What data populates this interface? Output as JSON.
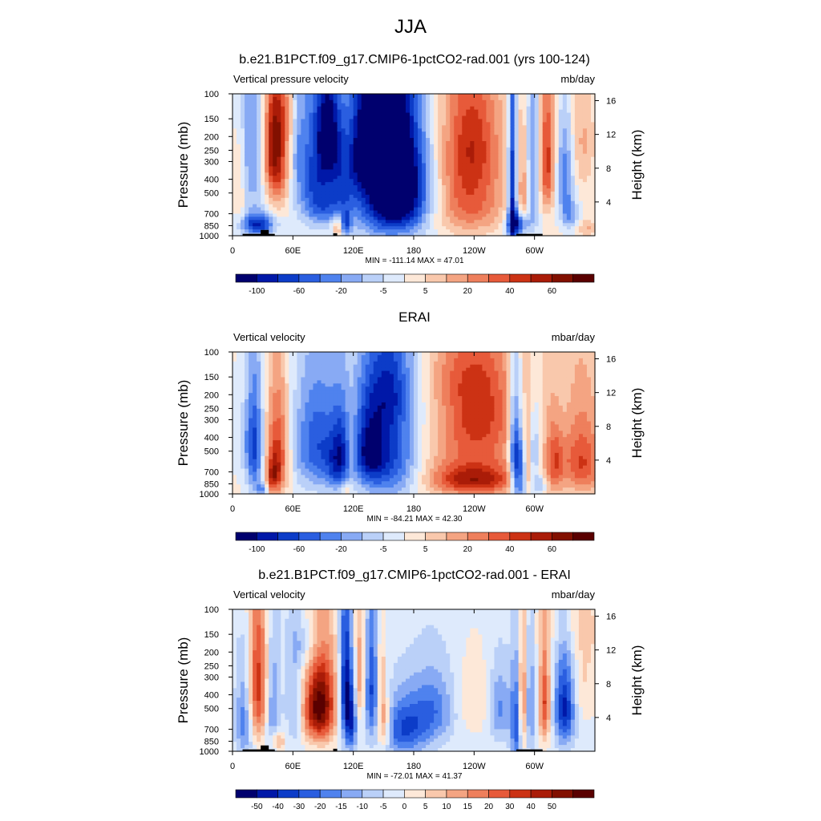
{
  "figure": {
    "title": "JJA"
  },
  "chart_data": [
    {
      "type": "heatmap",
      "title": "b.e21.B1PCT.f09_g17.CMIP6-1pctCO2-rad.001 (yrs 100-124)",
      "left_label": "Vertical pressure velocity",
      "units": "mb/day",
      "ylabel": "Pressure (mb)",
      "ylabel_right": "Height (km)",
      "y_ticks": [
        "100",
        "150",
        "200",
        "250",
        "300",
        "400",
        "500",
        "700",
        "850",
        "1000"
      ],
      "y_tick_values": [
        100,
        150,
        200,
        250,
        300,
        400,
        500,
        700,
        850,
        1000
      ],
      "y_right_ticks": [
        "16",
        "12",
        "8",
        "4"
      ],
      "y_right_values": [
        16,
        12,
        8,
        4
      ],
      "x_ticks": [
        "0",
        "60E",
        "120E",
        "180",
        "120W",
        "60W"
      ],
      "x_tick_values": [
        0,
        60,
        120,
        180,
        240,
        300
      ],
      "xlim": [
        0,
        360
      ],
      "ylim": [
        100,
        1000
      ],
      "stats": "MIN = -111.14  MAX =  47.01",
      "colorbar_labels": [
        "-100",
        "-60",
        "-20",
        "-5",
        "5",
        "20",
        "40",
        "60"
      ],
      "colors": [
        "#00006e",
        "#0018a8",
        "#0c3cc8",
        "#2a5ee0",
        "#4f82ee",
        "#88aaf4",
        "#bad0f8",
        "#deeafc",
        "#fde8d8",
        "#f9c8ac",
        "#f4a482",
        "#ee7f5c",
        "#e75a3a",
        "#cc3214",
        "#aa1c08",
        "#821000",
        "#5a0000"
      ],
      "field": {
        "background": 0.3,
        "blobs": [
          [
            22,
            230,
            10,
            300,
            -7
          ],
          [
            32,
            250,
            6,
            200,
            3
          ],
          [
            45,
            280,
            8,
            220,
            11
          ],
          [
            40,
            230,
            6,
            130,
            6
          ],
          [
            25,
            840,
            12,
            110,
            -12
          ],
          [
            55,
            140,
            10,
            60,
            3
          ],
          [
            65,
            140,
            4,
            200,
            -3
          ],
          [
            80,
            330,
            14,
            300,
            -9
          ],
          [
            95,
            190,
            8,
            120,
            -12
          ],
          [
            92,
            600,
            12,
            160,
            -6
          ],
          [
            105,
            860,
            4,
            100,
            7
          ],
          [
            112,
            820,
            4,
            110,
            -9
          ],
          [
            110,
            380,
            9,
            220,
            -6
          ],
          [
            150,
            420,
            24,
            360,
            -14
          ],
          [
            170,
            470,
            20,
            300,
            -12
          ],
          [
            130,
            240,
            8,
            140,
            -9
          ],
          [
            158,
            180,
            18,
            110,
            -6
          ],
          [
            178,
            180,
            10,
            80,
            2
          ],
          [
            235,
            380,
            24,
            330,
            10
          ],
          [
            240,
            200,
            16,
            120,
            3
          ],
          [
            238,
            720,
            30,
            140,
            1.5
          ],
          [
            278,
            500,
            3,
            500,
            -14
          ],
          [
            284,
            830,
            8,
            120,
            -12
          ],
          [
            290,
            500,
            4,
            300,
            7
          ],
          [
            298,
            360,
            6,
            300,
            -8
          ],
          [
            312,
            300,
            6,
            220,
            11
          ],
          [
            330,
            380,
            6,
            200,
            -8
          ],
          [
            335,
            720,
            6,
            120,
            -6
          ],
          [
            348,
            220,
            8,
            150,
            4
          ],
          [
            352,
            880,
            6,
            80,
            4
          ],
          [
            7,
            500,
            4,
            260,
            3
          ]
        ]
      },
      "topo": [
        [
          10,
          42,
          970
        ],
        [
          28,
          36,
          910
        ],
        [
          100,
          104,
          960
        ],
        [
          282,
          308,
          970
        ]
      ]
    },
    {
      "type": "heatmap",
      "title": "ERAI",
      "left_label": "Vertical velocity",
      "units": "mbar/day",
      "ylabel": "Pressure (mb)",
      "ylabel_right": "Height (km)",
      "y_ticks": [
        "100",
        "150",
        "200",
        "250",
        "300",
        "400",
        "500",
        "700",
        "850",
        "1000"
      ],
      "y_tick_values": [
        100,
        150,
        200,
        250,
        300,
        400,
        500,
        700,
        850,
        1000
      ],
      "y_right_ticks": [
        "16",
        "12",
        "8",
        "4"
      ],
      "y_right_values": [
        16,
        12,
        8,
        4
      ],
      "x_ticks": [
        "0",
        "60E",
        "120E",
        "180",
        "120W",
        "60W"
      ],
      "x_tick_values": [
        0,
        60,
        120,
        180,
        240,
        300
      ],
      "xlim": [
        0,
        360
      ],
      "ylim": [
        100,
        1000
      ],
      "stats": "MIN = -84.21  MAX =  42.30",
      "colorbar_labels": [
        "-100",
        "-60",
        "-20",
        "-5",
        "5",
        "20",
        "40",
        "60"
      ],
      "colors": [
        "#00006e",
        "#0018a8",
        "#0c3cc8",
        "#2a5ee0",
        "#4f82ee",
        "#88aaf4",
        "#bad0f8",
        "#deeafc",
        "#fde8d8",
        "#f9c8ac",
        "#f4a482",
        "#ee7f5c",
        "#e75a3a",
        "#cc3214",
        "#aa1c08",
        "#821000",
        "#5a0000"
      ],
      "field": {
        "background": 0.3,
        "blobs": [
          [
            22,
            480,
            6,
            350,
            -9
          ],
          [
            45,
            500,
            8,
            300,
            11
          ],
          [
            40,
            760,
            5,
            150,
            8
          ],
          [
            15,
            430,
            10,
            180,
            -3
          ],
          [
            30,
            930,
            4,
            80,
            -6
          ],
          [
            85,
            450,
            18,
            300,
            -10
          ],
          [
            105,
            650,
            8,
            200,
            -7
          ],
          [
            108,
            400,
            6,
            200,
            -4
          ],
          [
            112,
            920,
            4,
            70,
            4
          ],
          [
            118,
            500,
            4,
            200,
            3
          ],
          [
            155,
            500,
            22,
            380,
            -12
          ],
          [
            135,
            500,
            10,
            200,
            -9
          ],
          [
            160,
            180,
            20,
            100,
            -6
          ],
          [
            175,
            220,
            10,
            80,
            2
          ],
          [
            240,
            450,
            40,
            400,
            7
          ],
          [
            240,
            800,
            30,
            130,
            9
          ],
          [
            245,
            250,
            20,
            150,
            5
          ],
          [
            220,
            150,
            30,
            60,
            2
          ],
          [
            285,
            700,
            6,
            300,
            -13
          ],
          [
            280,
            400,
            4,
            300,
            -8
          ],
          [
            293,
            560,
            3,
            250,
            6
          ],
          [
            300,
            500,
            5,
            220,
            -7
          ],
          [
            305,
            870,
            5,
            90,
            -6
          ],
          [
            320,
            600,
            6,
            250,
            6
          ],
          [
            340,
            430,
            20,
            300,
            7
          ],
          [
            350,
            700,
            12,
            200,
            5
          ],
          [
            328,
            300,
            10,
            180,
            -3
          ]
        ]
      },
      "topo": []
    },
    {
      "type": "heatmap",
      "title": "b.e21.B1PCT.f09_g17.CMIP6-1pctCO2-rad.001 - ERAI",
      "left_label": "Vertical velocity",
      "units": "mbar/day",
      "ylabel": "Pressure (mb)",
      "ylabel_right": "Height (km)",
      "y_ticks": [
        "100",
        "150",
        "200",
        "250",
        "300",
        "400",
        "500",
        "700",
        "850",
        "1000"
      ],
      "y_tick_values": [
        100,
        150,
        200,
        250,
        300,
        400,
        500,
        700,
        850,
        1000
      ],
      "y_right_ticks": [
        "16",
        "12",
        "8",
        "4"
      ],
      "y_right_values": [
        16,
        12,
        8,
        4
      ],
      "x_ticks": [
        "0",
        "60E",
        "120E",
        "180",
        "120W",
        "60W"
      ],
      "x_tick_values": [
        0,
        60,
        120,
        180,
        240,
        300
      ],
      "xlim": [
        0,
        360
      ],
      "ylim": [
        100,
        1000
      ],
      "stats": "MIN = -72.01  MAX =  41.37",
      "colorbar_labels": [
        "-50",
        "-40",
        "-30",
        "-20",
        "-15",
        "-10",
        "-5",
        "0",
        "5",
        "10",
        "15",
        "20",
        "30",
        "40",
        "50"
      ],
      "colors": [
        "#00006e",
        "#0018a8",
        "#0c3cc8",
        "#2a5ee0",
        "#4f82ee",
        "#88aaf4",
        "#bad0f8",
        "#deeafc",
        "#fde8d8",
        "#f9c8ac",
        "#f4a482",
        "#ee7f5c",
        "#e75a3a",
        "#cc3214",
        "#aa1c08",
        "#821000",
        "#5a0000"
      ],
      "field": {
        "background": -0.8,
        "blobs": [
          [
            25,
            350,
            7,
            300,
            12
          ],
          [
            12,
            600,
            6,
            300,
            -7
          ],
          [
            40,
            500,
            5,
            300,
            -6
          ],
          [
            45,
            850,
            5,
            100,
            6
          ],
          [
            62,
            450,
            6,
            300,
            -4
          ],
          [
            75,
            180,
            12,
            50,
            -3
          ],
          [
            90,
            450,
            10,
            260,
            13
          ],
          [
            80,
            520,
            10,
            200,
            8
          ],
          [
            112,
            350,
            4,
            300,
            -12
          ],
          [
            118,
            600,
            4,
            250,
            -10
          ],
          [
            127,
            300,
            4,
            220,
            7
          ],
          [
            138,
            350,
            5,
            250,
            -9
          ],
          [
            150,
            650,
            5,
            200,
            9
          ],
          [
            148,
            300,
            3,
            200,
            4
          ],
          [
            170,
            700,
            18,
            230,
            -9
          ],
          [
            200,
            500,
            16,
            200,
            -6
          ],
          [
            240,
            450,
            14,
            200,
            3
          ],
          [
            265,
            500,
            8,
            200,
            -6
          ],
          [
            282,
            650,
            4,
            350,
            -9
          ],
          [
            288,
            450,
            3,
            300,
            9
          ],
          [
            296,
            500,
            3,
            300,
            -6
          ],
          [
            310,
            450,
            4,
            250,
            11
          ],
          [
            330,
            500,
            7,
            250,
            -12
          ],
          [
            350,
            300,
            10,
            200,
            3
          ],
          [
            340,
            130,
            25,
            50,
            2
          ]
        ]
      },
      "topo": [
        [
          10,
          42,
          970
        ],
        [
          28,
          36,
          910
        ],
        [
          100,
          104,
          960
        ],
        [
          282,
          308,
          970
        ]
      ]
    }
  ]
}
